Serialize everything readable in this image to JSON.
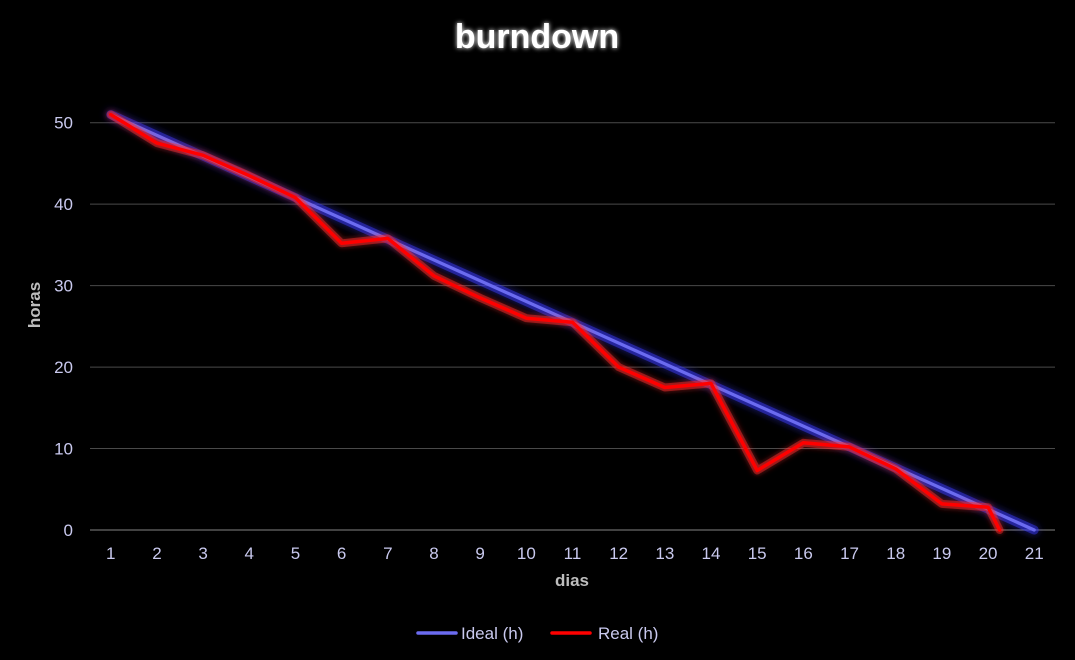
{
  "chart_data": {
    "type": "line",
    "title": "burndown",
    "xlabel": "dias",
    "ylabel": "horas",
    "x": [
      1,
      2,
      3,
      4,
      5,
      6,
      7,
      8,
      9,
      10,
      11,
      12,
      13,
      14,
      15,
      16,
      17,
      18,
      19,
      20,
      21
    ],
    "yticks": [
      0,
      10,
      20,
      30,
      40,
      50
    ],
    "ylim": [
      0,
      55
    ],
    "xlim": [
      0.55,
      21.45
    ],
    "grid": true,
    "legend_position": "bottom",
    "series": [
      {
        "name": "Ideal (h)",
        "color": "#6b6bf0",
        "glow": "#3b3bff",
        "points": [
          [
            1,
            51
          ],
          [
            21,
            0
          ]
        ]
      },
      {
        "name": "Real (h)",
        "color": "#ff0000",
        "glow": "#ff2a2a",
        "points": [
          [
            1,
            51
          ],
          [
            2,
            47.5
          ],
          [
            3,
            46
          ],
          [
            4,
            43.5
          ],
          [
            5,
            40.8
          ],
          [
            6,
            35.2
          ],
          [
            7,
            35.8
          ],
          [
            8,
            31.2
          ],
          [
            9,
            28.5
          ],
          [
            10,
            26
          ],
          [
            11,
            25.5
          ],
          [
            12,
            20
          ],
          [
            13,
            17.5
          ],
          [
            14,
            18
          ],
          [
            15,
            7.3
          ],
          [
            16,
            10.7
          ],
          [
            17,
            10.2
          ],
          [
            18,
            7.5
          ],
          [
            19,
            3.2
          ],
          [
            20,
            2.8
          ],
          [
            20.25,
            0
          ]
        ]
      }
    ]
  }
}
